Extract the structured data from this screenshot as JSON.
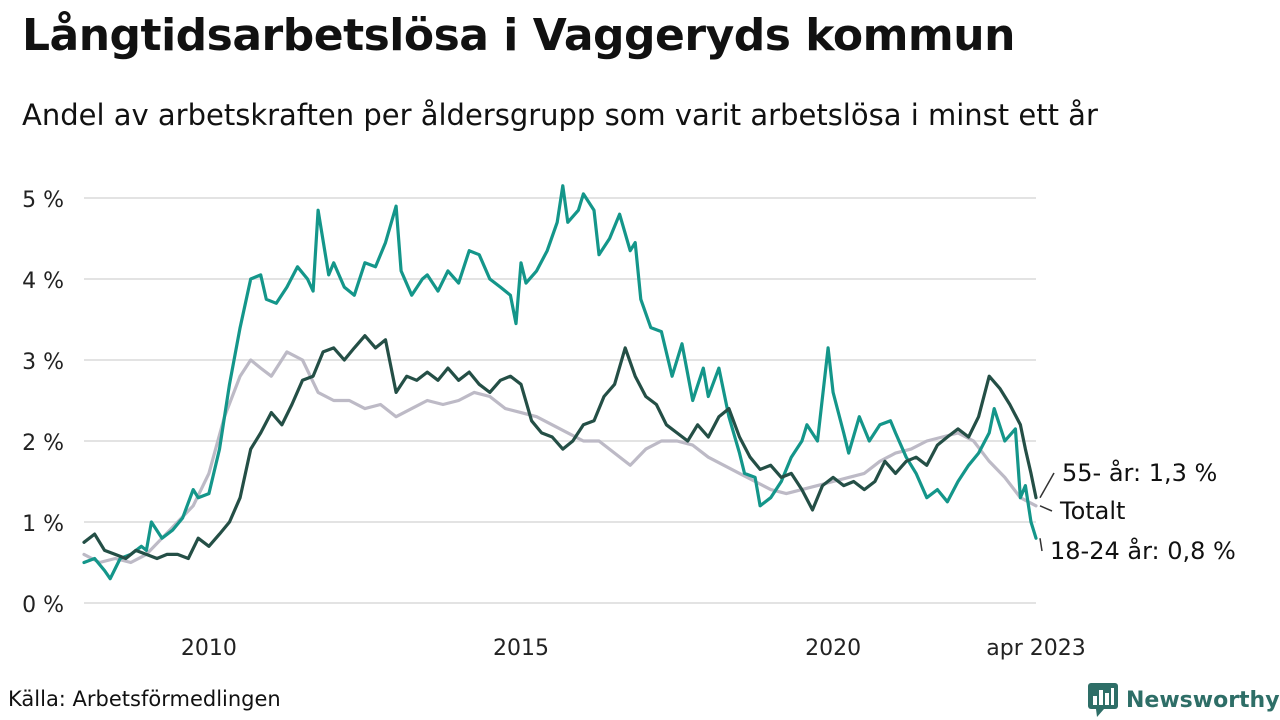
{
  "header": {
    "title": "Långtidsarbetslösa i Vaggeryds kommun",
    "subtitle": "Andel av arbetskraften per åldersgrupp som varit arbetslösa i minst ett år"
  },
  "footer": {
    "source": "Källa: Arbetsförmedlingen",
    "brand": "Newsworthy"
  },
  "colors": {
    "young": "#14968a",
    "old": "#244f46",
    "total": "#bdbac6",
    "grid": "#e3e3e3",
    "brand": "#2e6e67"
  },
  "icons": {
    "brand": "bar-chart-bubble-icon"
  },
  "chart_data": {
    "type": "line",
    "ylim": [
      0,
      5.3
    ],
    "xlim": [
      2008.0,
      2023.25
    ],
    "yticks": [
      {
        "value": 0,
        "label": "0 %"
      },
      {
        "value": 1,
        "label": "1 %"
      },
      {
        "value": 2,
        "label": "2 %"
      },
      {
        "value": 3,
        "label": "3 %"
      },
      {
        "value": 4,
        "label": "4 %"
      },
      {
        "value": 5,
        "label": "5 %"
      }
    ],
    "xticks": [
      {
        "value": 2010,
        "label": "2010"
      },
      {
        "value": 2015,
        "label": "2015"
      },
      {
        "value": 2020,
        "label": "2020"
      },
      {
        "value": 2023.25,
        "label": "apr 2023"
      }
    ],
    "grid": true,
    "legend": "direct labels at line ends (right)",
    "series": [
      {
        "key": "total",
        "label": "Totalt",
        "color": "#bdbac6",
        "points": [
          [
            2008.0,
            0.6
          ],
          [
            2008.25,
            0.5
          ],
          [
            2008.5,
            0.55
          ],
          [
            2008.75,
            0.5
          ],
          [
            2009.0,
            0.6
          ],
          [
            2009.25,
            0.8
          ],
          [
            2009.5,
            1.0
          ],
          [
            2009.75,
            1.2
          ],
          [
            2010.0,
            1.6
          ],
          [
            2010.25,
            2.3
          ],
          [
            2010.5,
            2.8
          ],
          [
            2010.67,
            3.0
          ],
          [
            2010.83,
            2.9
          ],
          [
            2011.0,
            2.8
          ],
          [
            2011.25,
            3.1
          ],
          [
            2011.5,
            3.0
          ],
          [
            2011.75,
            2.6
          ],
          [
            2012.0,
            2.5
          ],
          [
            2012.25,
            2.5
          ],
          [
            2012.5,
            2.4
          ],
          [
            2012.75,
            2.45
          ],
          [
            2013.0,
            2.3
          ],
          [
            2013.25,
            2.4
          ],
          [
            2013.5,
            2.5
          ],
          [
            2013.75,
            2.45
          ],
          [
            2014.0,
            2.5
          ],
          [
            2014.25,
            2.6
          ],
          [
            2014.5,
            2.55
          ],
          [
            2014.75,
            2.4
          ],
          [
            2015.0,
            2.35
          ],
          [
            2015.25,
            2.3
          ],
          [
            2015.5,
            2.2
          ],
          [
            2015.75,
            2.1
          ],
          [
            2016.0,
            2.0
          ],
          [
            2016.25,
            2.0
          ],
          [
            2016.5,
            1.85
          ],
          [
            2016.75,
            1.7
          ],
          [
            2017.0,
            1.9
          ],
          [
            2017.25,
            2.0
          ],
          [
            2017.5,
            2.0
          ],
          [
            2017.75,
            1.95
          ],
          [
            2018.0,
            1.8
          ],
          [
            2018.25,
            1.7
          ],
          [
            2018.5,
            1.6
          ],
          [
            2018.75,
            1.5
          ],
          [
            2019.0,
            1.4
          ],
          [
            2019.25,
            1.35
          ],
          [
            2019.5,
            1.4
          ],
          [
            2019.75,
            1.45
          ],
          [
            2020.0,
            1.5
          ],
          [
            2020.25,
            1.55
          ],
          [
            2020.5,
            1.6
          ],
          [
            2020.75,
            1.75
          ],
          [
            2021.0,
            1.85
          ],
          [
            2021.25,
            1.9
          ],
          [
            2021.5,
            2.0
          ],
          [
            2021.75,
            2.05
          ],
          [
            2022.0,
            2.1
          ],
          [
            2022.25,
            2.0
          ],
          [
            2022.5,
            1.75
          ],
          [
            2022.75,
            1.55
          ],
          [
            2023.0,
            1.3
          ],
          [
            2023.25,
            1.2
          ]
        ]
      },
      {
        "key": "young",
        "label": "18-24 år: 0,8 %",
        "color": "#14968a",
        "points": [
          [
            2008.0,
            0.5
          ],
          [
            2008.17,
            0.55
          ],
          [
            2008.33,
            0.4
          ],
          [
            2008.42,
            0.3
          ],
          [
            2008.58,
            0.55
          ],
          [
            2008.75,
            0.6
          ],
          [
            2008.92,
            0.7
          ],
          [
            2009.0,
            0.65
          ],
          [
            2009.08,
            1.0
          ],
          [
            2009.25,
            0.8
          ],
          [
            2009.42,
            0.9
          ],
          [
            2009.58,
            1.05
          ],
          [
            2009.75,
            1.4
          ],
          [
            2009.83,
            1.3
          ],
          [
            2010.0,
            1.35
          ],
          [
            2010.17,
            1.9
          ],
          [
            2010.33,
            2.7
          ],
          [
            2010.5,
            3.4
          ],
          [
            2010.67,
            4.0
          ],
          [
            2010.83,
            4.05
          ],
          [
            2010.92,
            3.75
          ],
          [
            2011.08,
            3.7
          ],
          [
            2011.25,
            3.9
          ],
          [
            2011.42,
            4.15
          ],
          [
            2011.58,
            4.0
          ],
          [
            2011.67,
            3.85
          ],
          [
            2011.75,
            4.85
          ],
          [
            2011.92,
            4.05
          ],
          [
            2012.0,
            4.2
          ],
          [
            2012.17,
            3.9
          ],
          [
            2012.33,
            3.8
          ],
          [
            2012.5,
            4.2
          ],
          [
            2012.67,
            4.15
          ],
          [
            2012.83,
            4.45
          ],
          [
            2013.0,
            4.9
          ],
          [
            2013.08,
            4.1
          ],
          [
            2013.25,
            3.8
          ],
          [
            2013.42,
            4.0
          ],
          [
            2013.5,
            4.05
          ],
          [
            2013.67,
            3.85
          ],
          [
            2013.83,
            4.1
          ],
          [
            2014.0,
            3.95
          ],
          [
            2014.17,
            4.35
          ],
          [
            2014.33,
            4.3
          ],
          [
            2014.5,
            4.0
          ],
          [
            2014.67,
            3.9
          ],
          [
            2014.83,
            3.8
          ],
          [
            2014.92,
            3.45
          ],
          [
            2015.0,
            4.2
          ],
          [
            2015.08,
            3.95
          ],
          [
            2015.25,
            4.1
          ],
          [
            2015.42,
            4.35
          ],
          [
            2015.58,
            4.7
          ],
          [
            2015.67,
            5.15
          ],
          [
            2015.75,
            4.7
          ],
          [
            2015.92,
            4.85
          ],
          [
            2016.0,
            5.05
          ],
          [
            2016.17,
            4.85
          ],
          [
            2016.25,
            4.3
          ],
          [
            2016.42,
            4.5
          ],
          [
            2016.58,
            4.8
          ],
          [
            2016.75,
            4.35
          ],
          [
            2016.83,
            4.45
          ],
          [
            2016.92,
            3.75
          ],
          [
            2017.08,
            3.4
          ],
          [
            2017.25,
            3.35
          ],
          [
            2017.42,
            2.8
          ],
          [
            2017.58,
            3.2
          ],
          [
            2017.75,
            2.5
          ],
          [
            2017.92,
            2.9
          ],
          [
            2018.0,
            2.55
          ],
          [
            2018.17,
            2.9
          ],
          [
            2018.33,
            2.3
          ],
          [
            2018.5,
            1.85
          ],
          [
            2018.58,
            1.6
          ],
          [
            2018.75,
            1.55
          ],
          [
            2018.83,
            1.2
          ],
          [
            2019.0,
            1.3
          ],
          [
            2019.17,
            1.5
          ],
          [
            2019.33,
            1.8
          ],
          [
            2019.5,
            2.0
          ],
          [
            2019.58,
            2.2
          ],
          [
            2019.75,
            2.0
          ],
          [
            2019.92,
            3.15
          ],
          [
            2020.0,
            2.6
          ],
          [
            2020.17,
            2.1
          ],
          [
            2020.25,
            1.85
          ],
          [
            2020.42,
            2.3
          ],
          [
            2020.58,
            2.0
          ],
          [
            2020.75,
            2.2
          ],
          [
            2020.92,
            2.25
          ],
          [
            2021.0,
            2.1
          ],
          [
            2021.17,
            1.8
          ],
          [
            2021.33,
            1.6
          ],
          [
            2021.5,
            1.3
          ],
          [
            2021.67,
            1.4
          ],
          [
            2021.83,
            1.25
          ],
          [
            2022.0,
            1.5
          ],
          [
            2022.17,
            1.7
          ],
          [
            2022.33,
            1.85
          ],
          [
            2022.5,
            2.1
          ],
          [
            2022.58,
            2.4
          ],
          [
            2022.75,
            2.0
          ],
          [
            2022.92,
            2.15
          ],
          [
            2023.0,
            1.3
          ],
          [
            2023.08,
            1.45
          ],
          [
            2023.17,
            1.0
          ],
          [
            2023.25,
            0.8
          ]
        ]
      },
      {
        "key": "old",
        "label": "55- år: 1,3 %",
        "color": "#244f46",
        "points": [
          [
            2008.0,
            0.75
          ],
          [
            2008.17,
            0.85
          ],
          [
            2008.33,
            0.65
          ],
          [
            2008.5,
            0.6
          ],
          [
            2008.67,
            0.55
          ],
          [
            2008.83,
            0.65
          ],
          [
            2009.0,
            0.6
          ],
          [
            2009.17,
            0.55
          ],
          [
            2009.33,
            0.6
          ],
          [
            2009.5,
            0.6
          ],
          [
            2009.67,
            0.55
          ],
          [
            2009.83,
            0.8
          ],
          [
            2010.0,
            0.7
          ],
          [
            2010.17,
            0.85
          ],
          [
            2010.33,
            1.0
          ],
          [
            2010.5,
            1.3
          ],
          [
            2010.67,
            1.9
          ],
          [
            2010.83,
            2.1
          ],
          [
            2011.0,
            2.35
          ],
          [
            2011.17,
            2.2
          ],
          [
            2011.33,
            2.45
          ],
          [
            2011.5,
            2.75
          ],
          [
            2011.67,
            2.8
          ],
          [
            2011.83,
            3.1
          ],
          [
            2012.0,
            3.15
          ],
          [
            2012.17,
            3.0
          ],
          [
            2012.33,
            3.15
          ],
          [
            2012.5,
            3.3
          ],
          [
            2012.67,
            3.15
          ],
          [
            2012.83,
            3.25
          ],
          [
            2013.0,
            2.6
          ],
          [
            2013.17,
            2.8
          ],
          [
            2013.33,
            2.75
          ],
          [
            2013.5,
            2.85
          ],
          [
            2013.67,
            2.75
          ],
          [
            2013.83,
            2.9
          ],
          [
            2014.0,
            2.75
          ],
          [
            2014.17,
            2.85
          ],
          [
            2014.33,
            2.7
          ],
          [
            2014.5,
            2.6
          ],
          [
            2014.67,
            2.75
          ],
          [
            2014.83,
            2.8
          ],
          [
            2015.0,
            2.7
          ],
          [
            2015.17,
            2.25
          ],
          [
            2015.33,
            2.1
          ],
          [
            2015.5,
            2.05
          ],
          [
            2015.67,
            1.9
          ],
          [
            2015.83,
            2.0
          ],
          [
            2016.0,
            2.2
          ],
          [
            2016.17,
            2.25
          ],
          [
            2016.33,
            2.55
          ],
          [
            2016.5,
            2.7
          ],
          [
            2016.67,
            3.15
          ],
          [
            2016.83,
            2.8
          ],
          [
            2017.0,
            2.55
          ],
          [
            2017.17,
            2.45
          ],
          [
            2017.33,
            2.2
          ],
          [
            2017.5,
            2.1
          ],
          [
            2017.67,
            2.0
          ],
          [
            2017.83,
            2.2
          ],
          [
            2018.0,
            2.05
          ],
          [
            2018.17,
            2.3
          ],
          [
            2018.33,
            2.4
          ],
          [
            2018.5,
            2.05
          ],
          [
            2018.67,
            1.8
          ],
          [
            2018.83,
            1.65
          ],
          [
            2019.0,
            1.7
          ],
          [
            2019.17,
            1.55
          ],
          [
            2019.33,
            1.6
          ],
          [
            2019.5,
            1.4
          ],
          [
            2019.67,
            1.15
          ],
          [
            2019.83,
            1.45
          ],
          [
            2020.0,
            1.55
          ],
          [
            2020.17,
            1.45
          ],
          [
            2020.33,
            1.5
          ],
          [
            2020.5,
            1.4
          ],
          [
            2020.67,
            1.5
          ],
          [
            2020.83,
            1.75
          ],
          [
            2021.0,
            1.6
          ],
          [
            2021.17,
            1.75
          ],
          [
            2021.33,
            1.8
          ],
          [
            2021.5,
            1.7
          ],
          [
            2021.67,
            1.95
          ],
          [
            2021.83,
            2.05
          ],
          [
            2022.0,
            2.15
          ],
          [
            2022.17,
            2.05
          ],
          [
            2022.33,
            2.3
          ],
          [
            2022.5,
            2.8
          ],
          [
            2022.67,
            2.65
          ],
          [
            2022.83,
            2.45
          ],
          [
            2023.0,
            2.2
          ],
          [
            2023.08,
            1.9
          ],
          [
            2023.17,
            1.6
          ],
          [
            2023.25,
            1.3
          ]
        ]
      }
    ]
  }
}
